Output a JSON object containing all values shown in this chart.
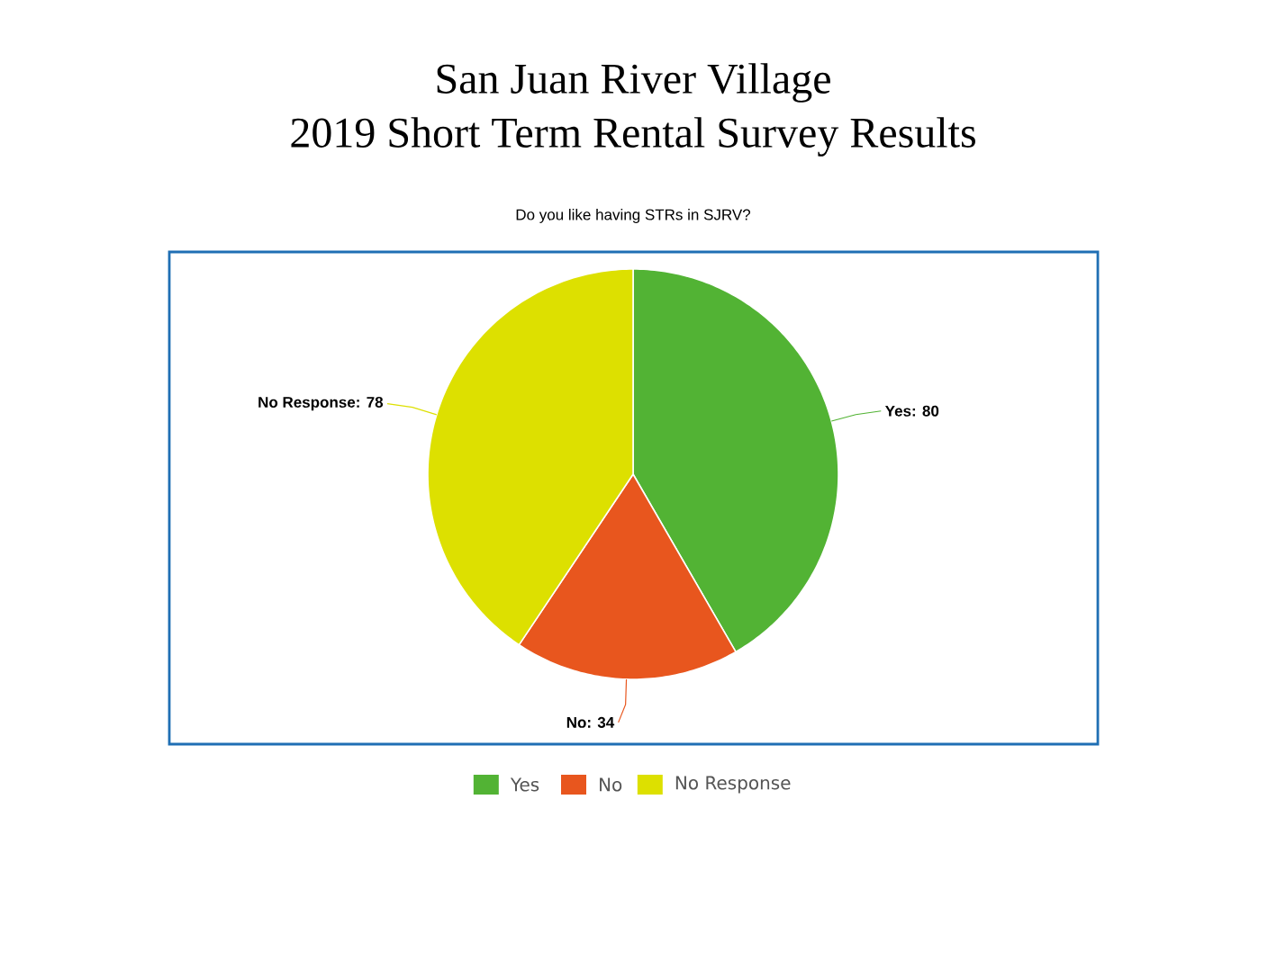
{
  "chart_data": {
    "type": "pie",
    "title": "San Juan River Village",
    "subtitle": "2019 Short Term Rental Survey Results",
    "annotations": [
      "Do you like having STRs in SJRV?"
    ],
    "categories": [
      "Yes",
      "No",
      "No Response"
    ],
    "values": [
      80,
      34,
      78
    ],
    "colors": [
      "#52b334",
      "#e8561e",
      "#dde000"
    ],
    "value_labels": [
      "Yes: 80",
      "No: 34",
      "No Response: 78"
    ],
    "legend": "bottom"
  }
}
